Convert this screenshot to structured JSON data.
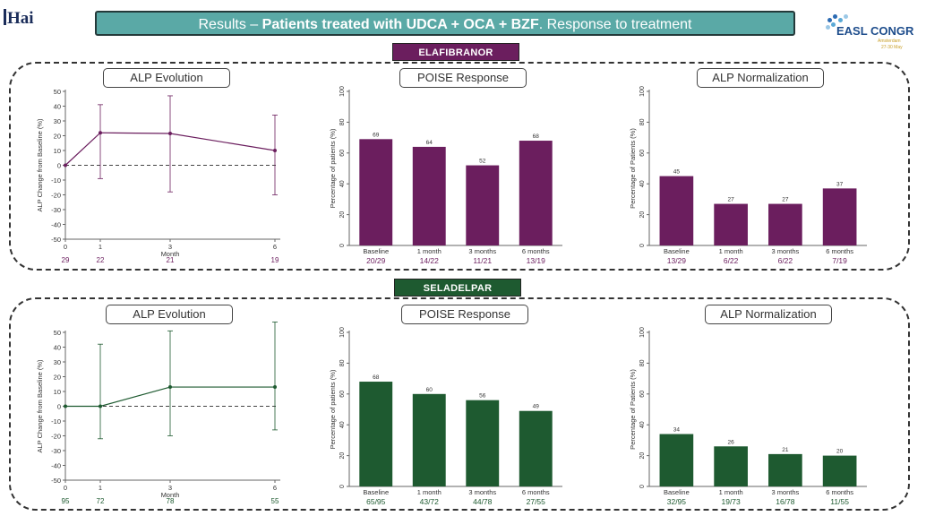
{
  "header": {
    "logo_left": "Hai",
    "title_prefix": "Results – ",
    "title_bold": "Patients treated with UDCA + OCA + BZF",
    "title_suffix": ". Response to treatment",
    "easl_logo_text": "EASL CONGR",
    "easl_logo_sub1": "Amsterdam",
    "easl_logo_sub2": "27-30 May"
  },
  "sections": [
    {
      "drug": "ELAFIBRANOR",
      "color": "#6b1e5e",
      "panels": {
        "alp_evolution": "ALP Evolution",
        "poise": "POISE Response",
        "normalization": "ALP Normalization"
      }
    },
    {
      "drug": "SELADELPAR",
      "color": "#1e5a30",
      "panels": {
        "alp_evolution": "ALP Evolution",
        "poise": "POISE Response",
        "normalization": "ALP Normalization"
      }
    }
  ],
  "chart_data": [
    {
      "id": "ela_alp",
      "type": "line",
      "color": "#6b1e5e",
      "x": [
        0,
        1,
        3,
        6
      ],
      "xticks": [
        "0",
        "1",
        "3",
        "6"
      ],
      "xlim": [
        0,
        6
      ],
      "xlabel": "Month",
      "ylabel": "ALP Change from Baseline (%)",
      "ylim": [
        -50,
        50
      ],
      "yticks": [
        "50",
        "40",
        "30",
        "20",
        "10",
        "0",
        "-10",
        "-20",
        "-30",
        "-40",
        "-50"
      ],
      "values": [
        0,
        22,
        21.5,
        10
      ],
      "err_high": [
        0,
        41,
        47,
        34
      ],
      "err_low": [
        0,
        -9,
        -18,
        -20
      ],
      "n": [
        "29",
        "22",
        "21",
        "19"
      ],
      "reference_line": 0
    },
    {
      "id": "ela_poise",
      "type": "bar",
      "color": "#6b1e5e",
      "categories": [
        "Baseline",
        "1 month",
        "3 months",
        "6 months"
      ],
      "values": [
        69,
        64,
        52,
        68
      ],
      "value_labels": [
        "69",
        "64",
        "52",
        "68"
      ],
      "fractions": [
        "20/29",
        "14/22",
        "11/21",
        "13/19"
      ],
      "ylabel": "Percentage of patients (%)",
      "ylim": [
        0,
        100
      ],
      "yticks": [
        "0",
        "20",
        "40",
        "60",
        "80",
        "100"
      ]
    },
    {
      "id": "ela_norm",
      "type": "bar",
      "color": "#6b1e5e",
      "categories": [
        "Baseline",
        "1 month",
        "3 months",
        "6 months"
      ],
      "values": [
        45,
        27,
        27,
        37
      ],
      "value_labels": [
        "45",
        "27",
        "27",
        "37"
      ],
      "fractions": [
        "13/29",
        "6/22",
        "6/22",
        "7/19"
      ],
      "ylabel": "Percentage of Patients (%)",
      "ylim": [
        0,
        100
      ],
      "yticks": [
        "0",
        "20",
        "40",
        "60",
        "80",
        "100"
      ]
    },
    {
      "id": "sel_alp",
      "type": "line",
      "color": "#1e5a30",
      "x": [
        0,
        1,
        3,
        6
      ],
      "xticks": [
        "0",
        "1",
        "3",
        "6"
      ],
      "xlim": [
        0,
        6
      ],
      "xlabel": "Month",
      "ylabel": "ALP Change from Baseline (%)",
      "ylim": [
        -50,
        50
      ],
      "yticks": [
        "50",
        "40",
        "30",
        "20",
        "10",
        "0",
        "-10",
        "-20",
        "-30",
        "-40",
        "-50"
      ],
      "values": [
        0,
        0,
        13,
        13
      ],
      "err_high": [
        0,
        42,
        51,
        57
      ],
      "err_low": [
        0,
        -22,
        -20,
        -16
      ],
      "n": [
        "95",
        "72",
        "78",
        "55"
      ],
      "reference_line": 0
    },
    {
      "id": "sel_poise",
      "type": "bar",
      "color": "#1e5a30",
      "categories": [
        "Baseline",
        "1 month",
        "3 months",
        "6 months"
      ],
      "values": [
        68,
        60,
        56,
        49
      ],
      "value_labels": [
        "68",
        "60",
        "56",
        "49"
      ],
      "fractions": [
        "65/95",
        "43/72",
        "44/78",
        "27/55"
      ],
      "ylabel": "Percentage of patients (%)",
      "ylim": [
        0,
        100
      ],
      "yticks": [
        "0",
        "20",
        "40",
        "60",
        "80",
        "100"
      ]
    },
    {
      "id": "sel_norm",
      "type": "bar",
      "color": "#1e5a30",
      "categories": [
        "Baseline",
        "1 month",
        "3 months",
        "6 months"
      ],
      "values": [
        34,
        26,
        21,
        20
      ],
      "value_labels": [
        "34",
        "26",
        "21",
        "20"
      ],
      "fractions": [
        "32/95",
        "19/73",
        "16/78",
        "11/55"
      ],
      "ylabel": "Percentage of Patients (%)",
      "ylim": [
        0,
        100
      ],
      "yticks": [
        "0",
        "20",
        "40",
        "60",
        "80",
        "100"
      ]
    }
  ]
}
